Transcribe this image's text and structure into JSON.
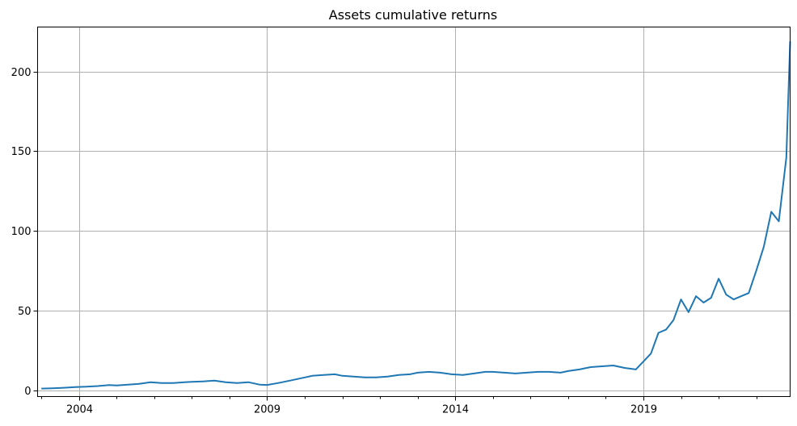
{
  "chart_data": {
    "type": "line",
    "title": "Assets cumulative returns",
    "xlabel": "",
    "ylabel": "",
    "grid": true,
    "xlim": [
      2002.9,
      2022.9
    ],
    "ylim": [
      -4,
      228
    ],
    "x_ticks": [
      2004,
      2009,
      2014,
      2019
    ],
    "x_tick_labels": [
      "2004",
      "2009",
      "2014",
      "2019"
    ],
    "x_minor_ticks": [
      2003,
      2005,
      2006,
      2007,
      2008,
      2010,
      2011,
      2012,
      2013,
      2015,
      2016,
      2017,
      2018,
      2020,
      2021,
      2022
    ],
    "y_ticks": [
      0,
      50,
      100,
      150,
      200
    ],
    "y_tick_labels": [
      "0",
      "50",
      "100",
      "150",
      "200"
    ],
    "line_color": "#1f77b4",
    "series": [
      {
        "x": [
          2003.0,
          2003.3,
          2003.6,
          2003.9,
          2004.2,
          2004.5,
          2004.8,
          2005.0,
          2005.3,
          2005.6,
          2005.9,
          2006.2,
          2006.5,
          2006.8,
          2007.0,
          2007.3,
          2007.6,
          2007.9,
          2008.2,
          2008.5,
          2008.8,
          2009.0,
          2009.3,
          2009.6,
          2009.9,
          2010.2,
          2010.5,
          2010.8,
          2011.0,
          2011.3,
          2011.6,
          2011.9,
          2012.2,
          2012.5,
          2012.8,
          2013.0,
          2013.3,
          2013.6,
          2013.9,
          2014.2,
          2014.5,
          2014.8,
          2015.0,
          2015.3,
          2015.6,
          2015.9,
          2016.2,
          2016.5,
          2016.8,
          2017.0,
          2017.3,
          2017.6,
          2017.9,
          2018.2,
          2018.5,
          2018.8,
          2019.0,
          2019.2,
          2019.4,
          2019.6,
          2019.8,
          2020.0,
          2020.2,
          2020.4,
          2020.6,
          2020.8,
          2021.0,
          2021.2,
          2021.4,
          2021.6,
          2021.8,
          2022.0,
          2022.2,
          2022.4,
          2022.6,
          2022.8,
          2022.9
        ],
        "y": [
          1.0,
          1.2,
          1.5,
          2.0,
          2.2,
          2.6,
          3.2,
          3.0,
          3.5,
          4.0,
          5.0,
          4.5,
          4.5,
          5.0,
          5.2,
          5.5,
          6.0,
          5.0,
          4.5,
          5.0,
          3.5,
          3.3,
          4.5,
          6.0,
          7.5,
          9.0,
          9.5,
          10.0,
          9.0,
          8.5,
          8.0,
          8.0,
          8.5,
          9.5,
          10.0,
          11.0,
          11.5,
          11.0,
          10.0,
          9.5,
          10.5,
          11.5,
          11.5,
          11.0,
          10.5,
          11.0,
          11.5,
          11.5,
          11.0,
          12.0,
          13.0,
          14.5,
          15.0,
          15.5,
          14.0,
          13.0,
          18.0,
          23.0,
          36.0,
          38.0,
          44.0,
          57.0,
          49.0,
          59.0,
          55.0,
          58.0,
          70.0,
          60.0,
          57.0,
          59.0,
          61.0,
          75.0,
          90.0,
          112.0,
          106.0,
          146.0,
          219.0
        ]
      }
    ]
  }
}
